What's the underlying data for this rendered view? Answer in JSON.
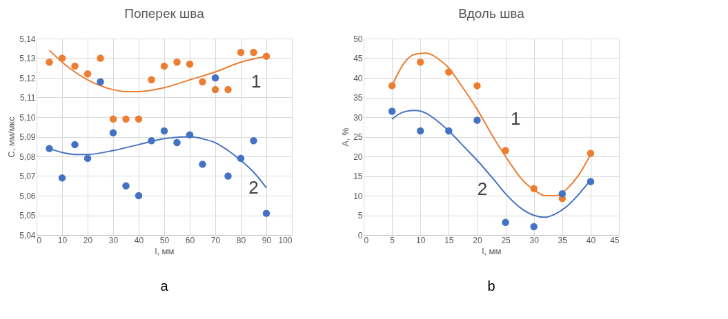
{
  "chart_data": [
    {
      "type": "scatter",
      "title": "Поперек шва",
      "xlabel": "l, мм",
      "ylabel": "C, мм/мкс",
      "grid": true,
      "marker": "circle",
      "legend": false,
      "xlim": [
        0,
        100
      ],
      "xticks": [
        0,
        10,
        20,
        30,
        40,
        50,
        60,
        70,
        80,
        90,
        100
      ],
      "ylim": [
        5.04,
        5.14
      ],
      "yticks": [
        {
          "value": 5.04,
          "label": "5,04"
        },
        {
          "value": 5.05,
          "label": "5,05"
        },
        {
          "value": 5.06,
          "label": "5,06"
        },
        {
          "value": 5.07,
          "label": "5,07"
        },
        {
          "value": 5.08,
          "label": "5,08"
        },
        {
          "value": 5.09,
          "label": "5,09"
        },
        {
          "value": 5.1,
          "label": "5,10"
        },
        {
          "value": 5.11,
          "label": "5,11"
        },
        {
          "value": 5.12,
          "label": "5,12"
        },
        {
          "value": 5.13,
          "label": "5,13"
        },
        {
          "value": 5.14,
          "label": "5,14"
        }
      ],
      "series": [
        {
          "type": "line",
          "marker": "none",
          "color": "#ed7d31",
          "x": [
            5,
            10,
            20,
            30,
            35,
            40,
            50,
            60,
            70,
            80,
            90
          ],
          "values": [
            5.134,
            5.128,
            5.119,
            5.114,
            5.113,
            5.113,
            5.115,
            5.119,
            5.123,
            5.128,
            5.131
          ]
        },
        {
          "type": "line",
          "marker": "none",
          "color": "#4472c4",
          "x": [
            5,
            10,
            15,
            20,
            30,
            40,
            50,
            60,
            65,
            70,
            75,
            80,
            85,
            90
          ],
          "values": [
            5.084,
            5.082,
            5.081,
            5.081,
            5.083,
            5.086,
            5.089,
            5.09,
            5.089,
            5.087,
            5.083,
            5.078,
            5.072,
            5.064
          ]
        },
        {
          "color": "#ed7d31",
          "x": [
            5,
            10,
            15,
            20,
            25,
            30,
            35,
            40,
            45,
            50,
            55,
            60,
            65,
            70,
            75,
            80,
            85,
            90
          ],
          "values": [
            5.128,
            5.13,
            5.126,
            5.122,
            5.13,
            5.099,
            5.099,
            5.099,
            5.119,
            5.126,
            5.128,
            5.127,
            5.118,
            5.114,
            5.114,
            5.133,
            5.133,
            5.131
          ]
        },
        {
          "color": "#4472c4",
          "x": [
            5,
            10,
            15,
            20,
            25,
            30,
            35,
            40,
            45,
            50,
            55,
            60,
            65,
            70,
            75,
            80,
            85,
            90
          ],
          "values": [
            5.084,
            5.069,
            5.086,
            5.079,
            5.118,
            5.092,
            5.065,
            5.06,
            5.088,
            5.093,
            5.087,
            5.091,
            5.076,
            5.12,
            5.07,
            5.079,
            5.088,
            5.051
          ]
        }
      ],
      "annotations": [
        "1",
        "2",
        "a"
      ]
    },
    {
      "type": "scatter",
      "title": "Вдоль шва",
      "xlabel": "l, мм",
      "ylabel": "A, %",
      "grid": true,
      "marker": "circle",
      "legend": false,
      "xlim": [
        0,
        45
      ],
      "xticks": [
        0,
        5,
        10,
        15,
        20,
        25,
        30,
        35,
        40,
        45
      ],
      "ylim": [
        0,
        50
      ],
      "yticks": [
        0,
        5,
        10,
        15,
        20,
        25,
        30,
        35,
        40,
        45,
        50
      ],
      "series": [
        {
          "type": "line",
          "marker": "none",
          "color": "#ed7d31",
          "x": [
            5,
            7,
            9,
            11,
            13,
            15,
            17,
            20,
            23,
            25,
            28,
            30,
            32,
            34,
            36,
            38,
            40
          ],
          "values": [
            38,
            43.5,
            46,
            46.3,
            45,
            42.5,
            38.5,
            32,
            24.5,
            20,
            14,
            11.5,
            10,
            10,
            12,
            15.5,
            20.5
          ]
        },
        {
          "type": "line",
          "marker": "none",
          "color": "#4472c4",
          "x": [
            5,
            7,
            9,
            11,
            13,
            15,
            18,
            20,
            23,
            25,
            28,
            30,
            32,
            34,
            36,
            38,
            40
          ],
          "values": [
            29.5,
            31.3,
            31.7,
            31,
            29,
            26.5,
            22,
            19,
            14,
            10.5,
            6.5,
            5,
            4.5,
            5.5,
            7.5,
            10.5,
            14
          ]
        },
        {
          "color": "#ed7d31",
          "x": [
            5,
            10,
            15,
            20,
            25,
            30,
            35,
            40
          ],
          "values": [
            38,
            44,
            41.5,
            38,
            21.5,
            11.8,
            9.3,
            20.8
          ]
        },
        {
          "color": "#4472c4",
          "x": [
            5,
            10,
            15,
            20,
            25,
            30,
            35,
            40
          ],
          "values": [
            31.5,
            26.5,
            26.5,
            29.2,
            3.2,
            2.1,
            10.5,
            13.6
          ]
        }
      ],
      "annotations": [
        "1",
        "2",
        "b"
      ]
    }
  ]
}
